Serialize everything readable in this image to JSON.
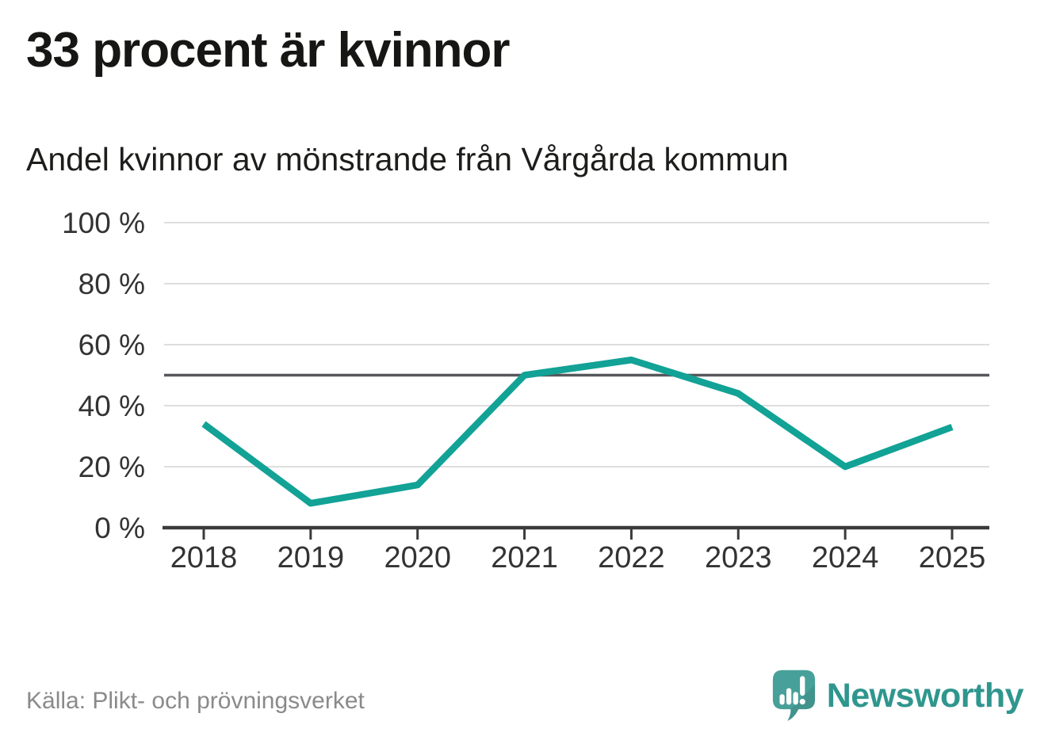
{
  "header": {
    "title": "33 procent är kvinnor",
    "subtitle": "Andel kvinnor av mönstrande från Vårgårda kommun"
  },
  "chart_data": {
    "type": "line",
    "title": "Andel kvinnor av mönstrande från Vårgårda kommun",
    "categories": [
      "2018",
      "2019",
      "2020",
      "2021",
      "2022",
      "2023",
      "2024",
      "2025"
    ],
    "values": [
      34,
      8,
      14,
      50,
      55,
      44,
      20,
      33
    ],
    "series_name": "Andel kvinnor av mönstrande",
    "ylim": [
      0,
      100
    ],
    "yticks": [
      0,
      20,
      40,
      60,
      80,
      100
    ],
    "ytick_suffix": " %",
    "reference_line": 50,
    "grid": true,
    "legend": "none",
    "colors": {
      "line": "#12a296",
      "grid": "#dedede",
      "axis": "#3b3b3b",
      "reference": "#56575b",
      "tick_label": "#333333"
    }
  },
  "footer": {
    "source": "Källa: Plikt- och prövningsverket",
    "brand": "Newsworthy",
    "brand_color": "#2f968e"
  }
}
